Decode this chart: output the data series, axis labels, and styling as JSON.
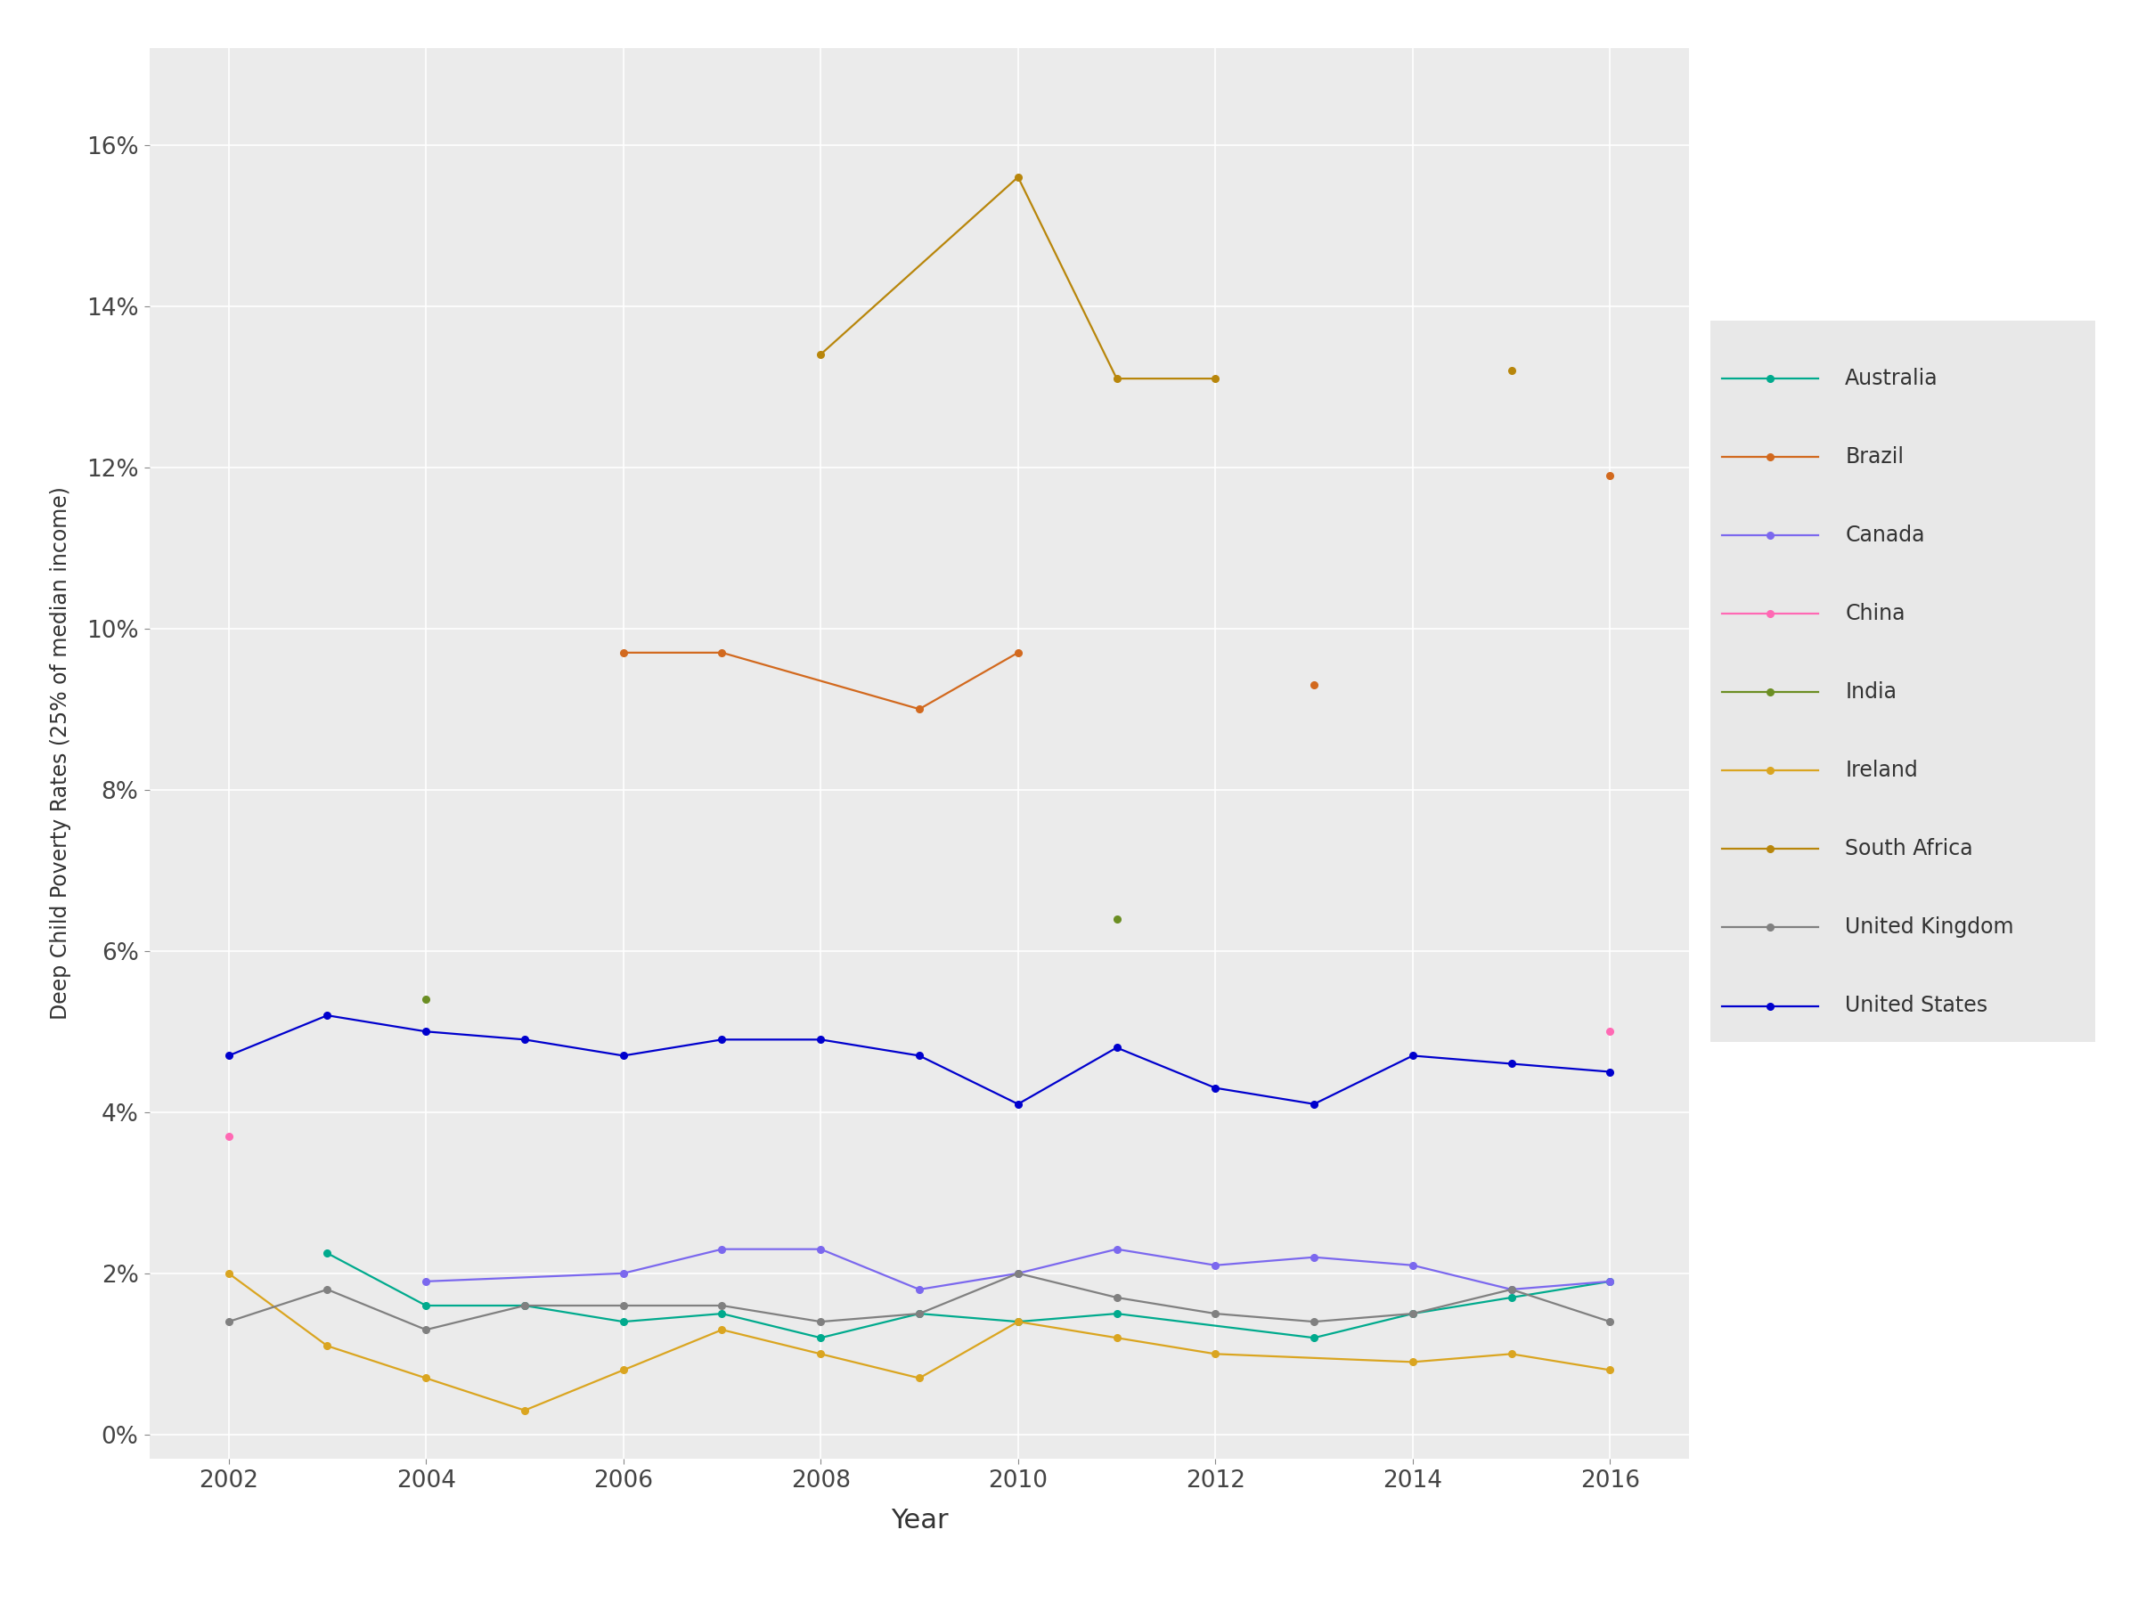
{
  "title": "",
  "xlabel": "Year",
  "ylabel": "Deep Child Poverty Rates (25% of median income)",
  "figure_bg": "#ffffff",
  "plot_bg_color": "#ebebeb",
  "grid_color": "#ffffff",
  "series": {
    "Australia": {
      "color": "#00AA8D",
      "data": [
        [
          2003,
          0.0225
        ],
        [
          2004,
          0.016
        ],
        [
          2005,
          0.016
        ],
        [
          2006,
          0.014
        ],
        [
          2007,
          0.015
        ],
        [
          2008,
          0.012
        ],
        [
          2009,
          0.015
        ],
        [
          2010,
          0.014
        ],
        [
          2011,
          0.015
        ],
        [
          2013,
          0.012
        ],
        [
          2014,
          0.015
        ],
        [
          2015,
          0.017
        ],
        [
          2016,
          0.019
        ]
      ]
    },
    "Brazil": {
      "color": "#D2691E",
      "data": [
        [
          2006,
          0.097
        ],
        [
          2007,
          0.097
        ],
        [
          2009,
          0.09
        ],
        [
          2010,
          0.097
        ],
        [
          2013,
          0.093
        ],
        [
          2016,
          0.119
        ]
      ]
    },
    "Canada": {
      "color": "#7B68EE",
      "data": [
        [
          2004,
          0.019
        ],
        [
          2006,
          0.02
        ],
        [
          2007,
          0.023
        ],
        [
          2008,
          0.023
        ],
        [
          2009,
          0.018
        ],
        [
          2010,
          0.02
        ],
        [
          2011,
          0.023
        ],
        [
          2012,
          0.021
        ],
        [
          2013,
          0.022
        ],
        [
          2014,
          0.021
        ],
        [
          2015,
          0.018
        ],
        [
          2016,
          0.019
        ]
      ]
    },
    "China": {
      "color": "#FF69B4",
      "data": [
        [
          2002,
          0.037
        ],
        [
          2016,
          0.05
        ]
      ]
    },
    "India": {
      "color": "#6B8E23",
      "data": [
        [
          2004,
          0.054
        ],
        [
          2011,
          0.064
        ]
      ]
    },
    "Ireland": {
      "color": "#DAA520",
      "data": [
        [
          2002,
          0.02
        ],
        [
          2003,
          0.011
        ],
        [
          2004,
          0.007
        ],
        [
          2005,
          0.003
        ],
        [
          2006,
          0.008
        ],
        [
          2007,
          0.013
        ],
        [
          2008,
          0.01
        ],
        [
          2009,
          0.007
        ],
        [
          2010,
          0.014
        ],
        [
          2011,
          0.012
        ],
        [
          2012,
          0.01
        ],
        [
          2014,
          0.009
        ],
        [
          2015,
          0.01
        ],
        [
          2016,
          0.008
        ]
      ]
    },
    "South Africa": {
      "color": "#B8860B",
      "data": [
        [
          2008,
          0.134
        ],
        [
          2010,
          0.156
        ],
        [
          2011,
          0.131
        ],
        [
          2012,
          0.131
        ],
        [
          2015,
          0.132
        ]
      ]
    },
    "United Kingdom": {
      "color": "#808080",
      "data": [
        [
          2002,
          0.014
        ],
        [
          2003,
          0.018
        ],
        [
          2004,
          0.013
        ],
        [
          2005,
          0.016
        ],
        [
          2006,
          0.016
        ],
        [
          2007,
          0.016
        ],
        [
          2008,
          0.014
        ],
        [
          2009,
          0.015
        ],
        [
          2010,
          0.02
        ],
        [
          2011,
          0.017
        ],
        [
          2012,
          0.015
        ],
        [
          2013,
          0.014
        ],
        [
          2014,
          0.015
        ],
        [
          2015,
          0.018
        ],
        [
          2016,
          0.014
        ]
      ]
    },
    "United States": {
      "color": "#0000CD",
      "data": [
        [
          2002,
          0.047
        ],
        [
          2003,
          0.052
        ],
        [
          2004,
          0.05
        ],
        [
          2005,
          0.049
        ],
        [
          2006,
          0.047
        ],
        [
          2007,
          0.049
        ],
        [
          2008,
          0.049
        ],
        [
          2009,
          0.047
        ],
        [
          2010,
          0.041
        ],
        [
          2011,
          0.048
        ],
        [
          2012,
          0.043
        ],
        [
          2013,
          0.041
        ],
        [
          2014,
          0.047
        ],
        [
          2015,
          0.046
        ],
        [
          2016,
          0.045
        ]
      ]
    }
  },
  "ylim": [
    -0.003,
    0.172
  ],
  "yticks": [
    0.0,
    0.02,
    0.04,
    0.06,
    0.08,
    0.1,
    0.12,
    0.14,
    0.16
  ],
  "xticks": [
    2002,
    2004,
    2006,
    2008,
    2010,
    2012,
    2014,
    2016
  ],
  "linewidth": 1.6,
  "markersize": 5.5
}
